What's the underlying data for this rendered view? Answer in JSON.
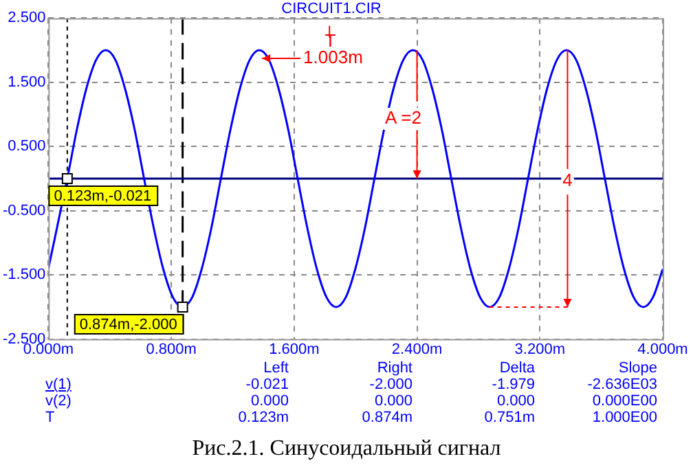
{
  "chart_data": {
    "type": "line",
    "title": "CIRCUIT1.CIR",
    "xlim": [
      0,
      4
    ],
    "xticks": [
      {
        "value": 0,
        "label": "0.000m"
      },
      {
        "value": 0.8,
        "label": "0.800m"
      },
      {
        "value": 1.6,
        "label": "1.600m"
      },
      {
        "value": 2.4,
        "label": "2.400m"
      },
      {
        "value": 3.2,
        "label": "3.200m"
      },
      {
        "value": 4,
        "label": "4.000m"
      }
    ],
    "ylim": [
      -2.5,
      2.5
    ],
    "yticks": [
      {
        "value": -2.5,
        "label": "-2.500"
      },
      {
        "value": -1.5,
        "label": "-1.500"
      },
      {
        "value": -0.5,
        "label": "-0.500"
      },
      {
        "value": 0.5,
        "label": "0.500"
      },
      {
        "value": 1.5,
        "label": "1.500"
      },
      {
        "value": 2.5,
        "label": "2.500"
      }
    ],
    "grid": true,
    "legend": false,
    "marker": "none",
    "line_style": "solid",
    "series": [
      {
        "color": "#0000ff",
        "x": [
          0,
          0.123,
          0.186,
          0.248,
          0.311,
          0.373,
          0.436,
          0.498,
          0.561,
          0.623,
          0.686,
          0.748,
          0.811,
          0.873,
          0.936,
          0.998,
          1.061,
          1.123,
          1.186,
          1.248,
          1.311,
          1.373,
          1.436,
          1.498,
          1.561,
          1.623,
          1.686,
          1.748,
          1.811,
          1.873,
          1.936,
          1.998,
          2.061,
          2.123,
          2.186,
          2.248,
          2.311,
          2.373,
          2.436,
          2.498,
          2.561,
          2.623,
          2.686,
          2.748,
          2.811,
          2.873,
          2.936,
          2.998,
          3.061,
          3.123,
          3.186,
          3.248,
          3.311,
          3.373,
          3.436,
          3.498,
          3.561,
          3.623,
          3.686,
          3.748,
          3.811,
          3.873,
          3.936,
          4
        ],
        "values": [
          -1.4,
          0,
          0.77,
          1.41,
          1.85,
          2,
          1.85,
          1.41,
          0.77,
          0,
          -0.77,
          -1.41,
          -1.85,
          -2,
          -1.85,
          -1.41,
          -0.77,
          0,
          0.77,
          1.41,
          1.85,
          2,
          1.85,
          1.41,
          0.77,
          0,
          -0.77,
          -1.41,
          -1.85,
          -2,
          -1.85,
          -1.41,
          -0.77,
          0,
          0.77,
          1.41,
          1.85,
          2,
          1.85,
          1.41,
          0.77,
          0,
          -0.77,
          -1.41,
          -1.85,
          -2,
          -1.85,
          -1.41,
          -0.77,
          0,
          0.77,
          1.41,
          1.85,
          2,
          1.85,
          1.41,
          0.77,
          0,
          -0.77,
          -1.41,
          -1.85,
          -2,
          -1.85,
          -1.41
        ]
      },
      {
        "color": "#000080",
        "x": [
          0,
          4
        ],
        "values": [
          0,
          0
        ]
      }
    ],
    "ref_lines": [
      {
        "axis": "x",
        "value": 0.123,
        "label": "0.123m,-0.021",
        "color": "#000000",
        "line_style": "dotted"
      },
      {
        "axis": "x",
        "value": 0.874,
        "label": "0.874m,-2.000",
        "color": "#000000",
        "line_style": "dashed"
      }
    ],
    "annotations": [
      "T",
      {
        "text": "1.003m",
        "x": 1.373,
        "y": 2
      },
      {
        "text": "A =2",
        "x": 2.31,
        "y": 0.93
      },
      {
        "text": "4",
        "x": 3.38,
        "y": -0.04
      },
      "\tLeft\tRight\tDelta\tSlope",
      "v(1)\t-0.021\t-2.000\t-1.979\t-2.636E03",
      "v(2)\t0.000\t0.000\t0.000\t0.000E00",
      "T\t0.123m\t0.874m\t0.751m\t1.000E00",
      "Рис.2.1. Синусоидальный сигнал"
    ]
  }
}
